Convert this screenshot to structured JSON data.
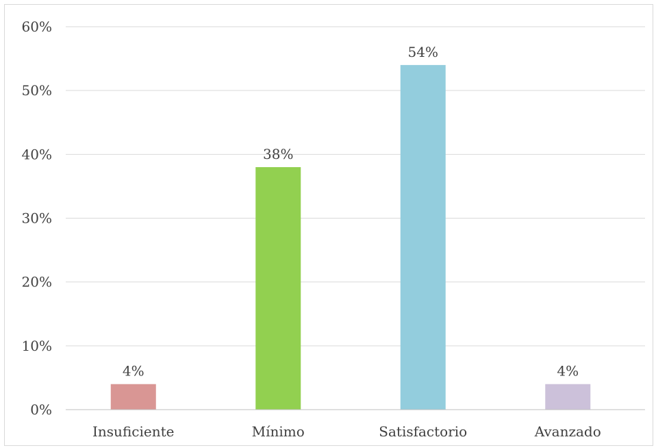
{
  "chart_data": {
    "type": "bar",
    "title": "",
    "xlabel": "",
    "ylabel": "",
    "categories": [
      "Insuficiente",
      "Mínimo",
      "Satisfactorio",
      "Avanzado"
    ],
    "values": [
      4,
      38,
      54,
      4
    ],
    "value_labels": [
      "4%",
      "38%",
      "54%",
      "4%"
    ],
    "colors": [
      "#d99694",
      "#92d050",
      "#93cddd",
      "#ccc1da"
    ],
    "ylim": [
      0,
      60
    ],
    "yticks": [
      0,
      10,
      20,
      30,
      40,
      50,
      60
    ],
    "ytick_labels": [
      "0%",
      "10%",
      "20%",
      "30%",
      "40%",
      "50%",
      "60%"
    ],
    "grid": true,
    "legend": "none"
  }
}
